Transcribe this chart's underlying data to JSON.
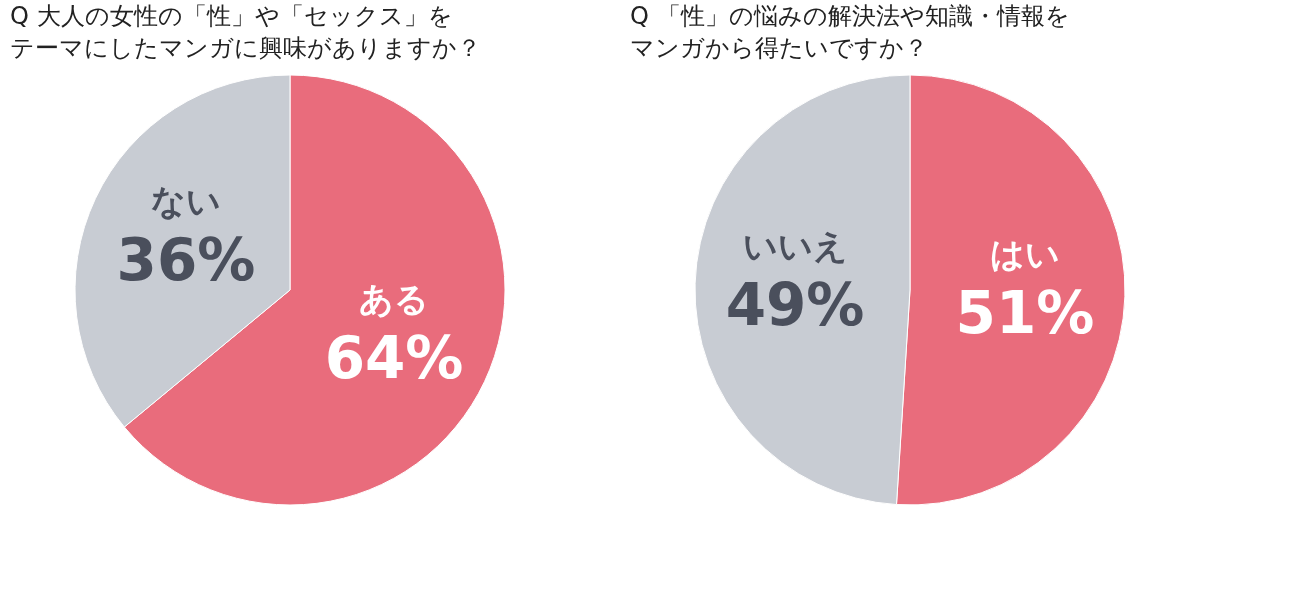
{
  "chart_data": [
    {
      "type": "pie",
      "title": "Q 大人の女性の「性」や「セックス」をテーマにしたマンガに興味がありますか？",
      "categories": [
        "ある",
        "ない"
      ],
      "values": [
        64,
        36
      ],
      "colors": [
        "#e96c7c",
        "#c8ccd3"
      ],
      "value_labels": [
        "64%",
        "36%"
      ],
      "legend": false
    },
    {
      "type": "pie",
      "title": "Q 「性」の悩みの解決法や知識・情報をマンガから得たいですか？",
      "categories": [
        "はい",
        "いいえ"
      ],
      "values": [
        51,
        49
      ],
      "colors": [
        "#e96c7c",
        "#c8ccd3"
      ],
      "value_labels": [
        "51%",
        "49%"
      ],
      "legend": false
    }
  ]
}
